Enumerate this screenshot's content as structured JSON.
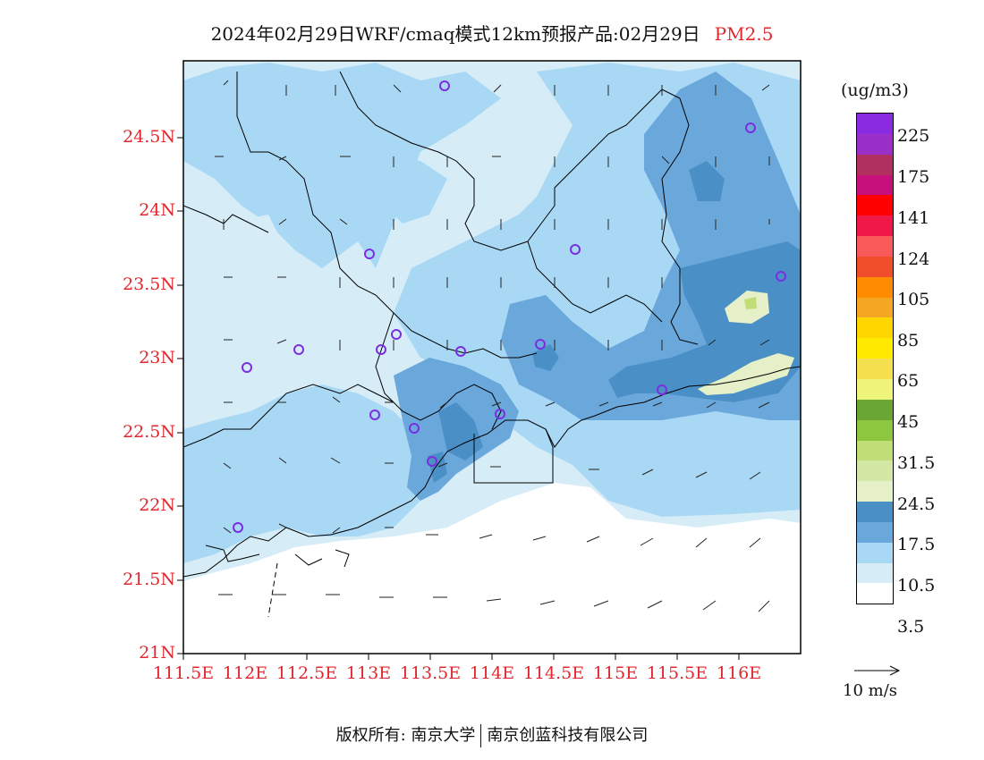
{
  "title": {
    "main": "2024年02月29日WRF/cmaq模式12km预报产品:02月29日",
    "pollutant": "PM2.5"
  },
  "axes": {
    "lat_ticks": [
      "24.5N",
      "24N",
      "23.5N",
      "23N",
      "22.5N",
      "22N",
      "21.5N",
      "21N"
    ],
    "lon_ticks": [
      "111.5E",
      "112E",
      "112.5E",
      "113E",
      "113.5E",
      "114E",
      "114.5E",
      "115E",
      "115.5E",
      "116E"
    ]
  },
  "legend": {
    "unit": "(ug/m3)",
    "labels": [
      "225",
      "175",
      "141",
      "124",
      "105",
      "85",
      "65",
      "45",
      "31.5",
      "24.5",
      "17.5",
      "10.5",
      "3.5"
    ],
    "colors": [
      "#8a2be2",
      "#9b30c8",
      "#b03060",
      "#c8107a",
      "#ff0000",
      "#f01848",
      "#f85a5a",
      "#f04e2a",
      "#ff8c00",
      "#f5a623",
      "#ffd700",
      "#ffea00",
      "#f5e050",
      "#eef57a",
      "#6aa633",
      "#8dc63f",
      "#c0dd78",
      "#d2e8a4",
      "#e5f0c8",
      "#4a8fc6",
      "#6aa8dc",
      "#a9d8f5",
      "#d6ecf7",
      "#ffffff"
    ]
  },
  "wind_reference": {
    "label": "10 m/s"
  },
  "footer": {
    "left": "版权所有: 南京大学",
    "right": "南京创蓝科技有限公司"
  }
}
